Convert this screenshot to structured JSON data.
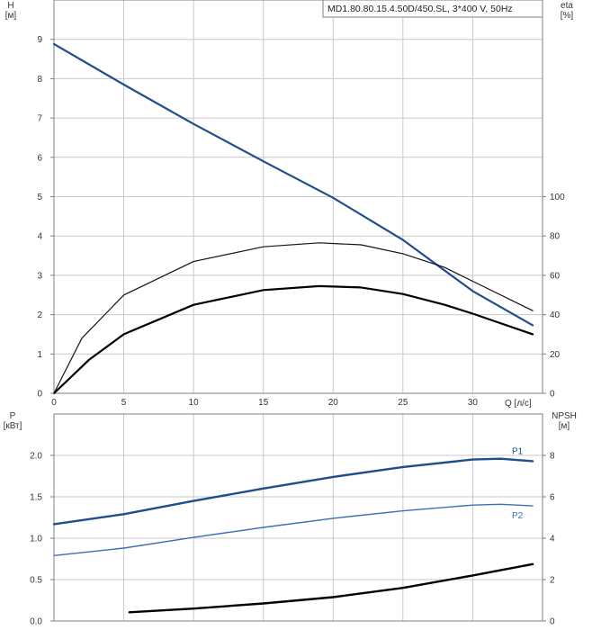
{
  "chart_data": [
    {
      "type": "line",
      "title": "MD1.80.80.15.4.50D/450.SL, 3*400 V, 50Hz",
      "xlabel": "Q [л/с]",
      "ylabel": "H\n[м]",
      "y2label": "eta\n[%]",
      "xlim": [
        0,
        35
      ],
      "ylim": [
        0,
        10
      ],
      "y2lim": [
        0,
        200
      ],
      "xticks": [
        0,
        5,
        10,
        15,
        20,
        25,
        30
      ],
      "yticks": [
        0,
        1,
        2,
        3,
        4,
        5,
        6,
        7,
        8,
        9
      ],
      "y2ticks": [
        0,
        20,
        40,
        60,
        80,
        100
      ],
      "grid": true,
      "series": [
        {
          "axis": "left",
          "color": "#1f4e8c",
          "x": [
            0,
            5,
            10,
            15,
            20,
            25,
            30,
            34.3
          ],
          "y": [
            8.88,
            7.85,
            6.85,
            5.9,
            4.97,
            3.9,
            2.6,
            1.73
          ]
        },
        {
          "axis": "right",
          "color": "#111111",
          "x": [
            0,
            2,
            5,
            10,
            15,
            19,
            22,
            25,
            28,
            30,
            34.3
          ],
          "y": [
            0,
            28,
            50,
            67,
            74.5,
            76.5,
            75.5,
            71,
            64,
            57,
            42
          ]
        },
        {
          "axis": "right",
          "color": "#000000",
          "x": [
            0,
            2.5,
            5,
            10,
            15,
            19,
            22,
            25,
            28,
            30,
            34.3
          ],
          "y": [
            0,
            17,
            30,
            45,
            52.5,
            54.5,
            53.8,
            50.5,
            45,
            40.5,
            30
          ]
        }
      ]
    },
    {
      "type": "line",
      "xlim": [
        0,
        35
      ],
      "ylabel": "P\n[кВт]",
      "y2label": "NPSH\n[м]",
      "ylim": [
        0,
        2.5
      ],
      "y2lim": [
        0,
        10
      ],
      "yticks": [
        0.0,
        0.5,
        1.0,
        1.5,
        2.0
      ],
      "ytick_labels": [
        "0.0",
        "0.5",
        "1.0",
        "1.5",
        "2.0"
      ],
      "y2ticks": [
        0,
        2,
        4,
        6,
        8
      ],
      "grid": true,
      "series": [
        {
          "name": "P1",
          "axis": "left",
          "color": "#1f4e8c",
          "x": [
            0,
            5,
            10,
            15,
            20,
            25,
            30,
            32,
            34.3
          ],
          "y": [
            1.17,
            1.29,
            1.45,
            1.6,
            1.74,
            1.86,
            1.95,
            1.96,
            1.93
          ]
        },
        {
          "name": "P2",
          "axis": "left",
          "color": "#3a6fb0",
          "x": [
            0,
            5,
            10,
            15,
            20,
            25,
            30,
            32,
            34.3
          ],
          "y": [
            0.79,
            0.88,
            1.01,
            1.13,
            1.24,
            1.33,
            1.4,
            1.41,
            1.39
          ]
        },
        {
          "axis": "right",
          "color": "#000000",
          "x": [
            5.4,
            10,
            15,
            20,
            25,
            30,
            34.3
          ],
          "y": [
            0.42,
            0.6,
            0.85,
            1.15,
            1.6,
            2.2,
            2.75
          ]
        }
      ]
    }
  ]
}
